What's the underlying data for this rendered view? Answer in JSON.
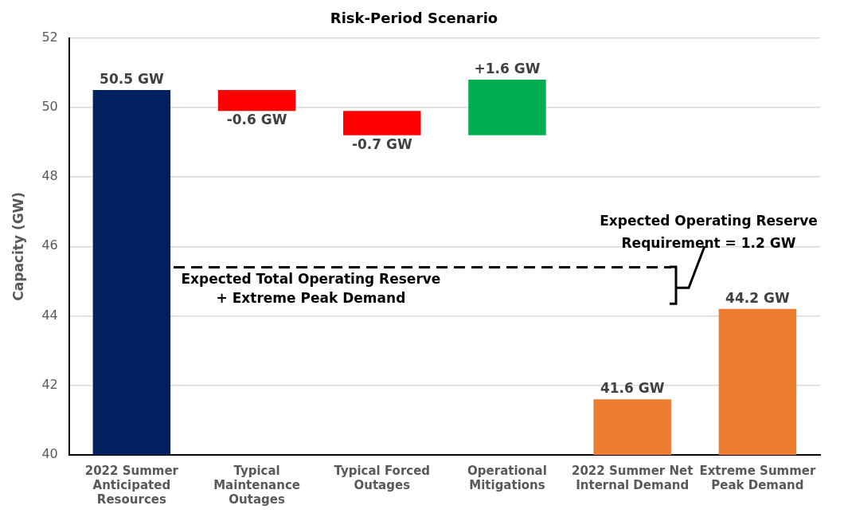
{
  "chart_data": {
    "type": "bar",
    "title": "Risk-Period Scenario",
    "ylabel": "Capacity (GW)",
    "categories": [
      "2022 Summer Anticipated Resources",
      "Typical Maintenance Outages",
      "Typical Forced Outages",
      "Operational Mitigations",
      "2022 Summer Net Internal Demand",
      "Extreme Summer Peak Demand"
    ],
    "values": [
      50.5,
      -0.6,
      -0.7,
      1.6,
      41.6,
      44.2
    ],
    "base": [
      null,
      50.5,
      49.9,
      49.2,
      null,
      null
    ],
    "colors": [
      "#002060",
      "#ff0000",
      "#ff0000",
      "#00b050",
      "#ed7d31",
      "#ed7d31"
    ],
    "value_labels": [
      "50.5 GW",
      "-0.6 GW",
      "-0.7 GW",
      "+1.6 GW",
      "41.6 GW",
      "44.2 GW"
    ],
    "ylim": [
      40,
      52
    ],
    "yticks": [
      40,
      42,
      44,
      46,
      48,
      50,
      52
    ],
    "grid": "y",
    "legend": false,
    "ref_lines": [
      {
        "axis": "y",
        "value": 45.4,
        "label": "Expected Total Operating Reserve\n+ Extreme Peak Demand",
        "color": "#000000",
        "line_style": "dashed"
      }
    ],
    "annotations": [
      "Expected Operating Reserve\nRequirement = 1.2 GW"
    ]
  }
}
